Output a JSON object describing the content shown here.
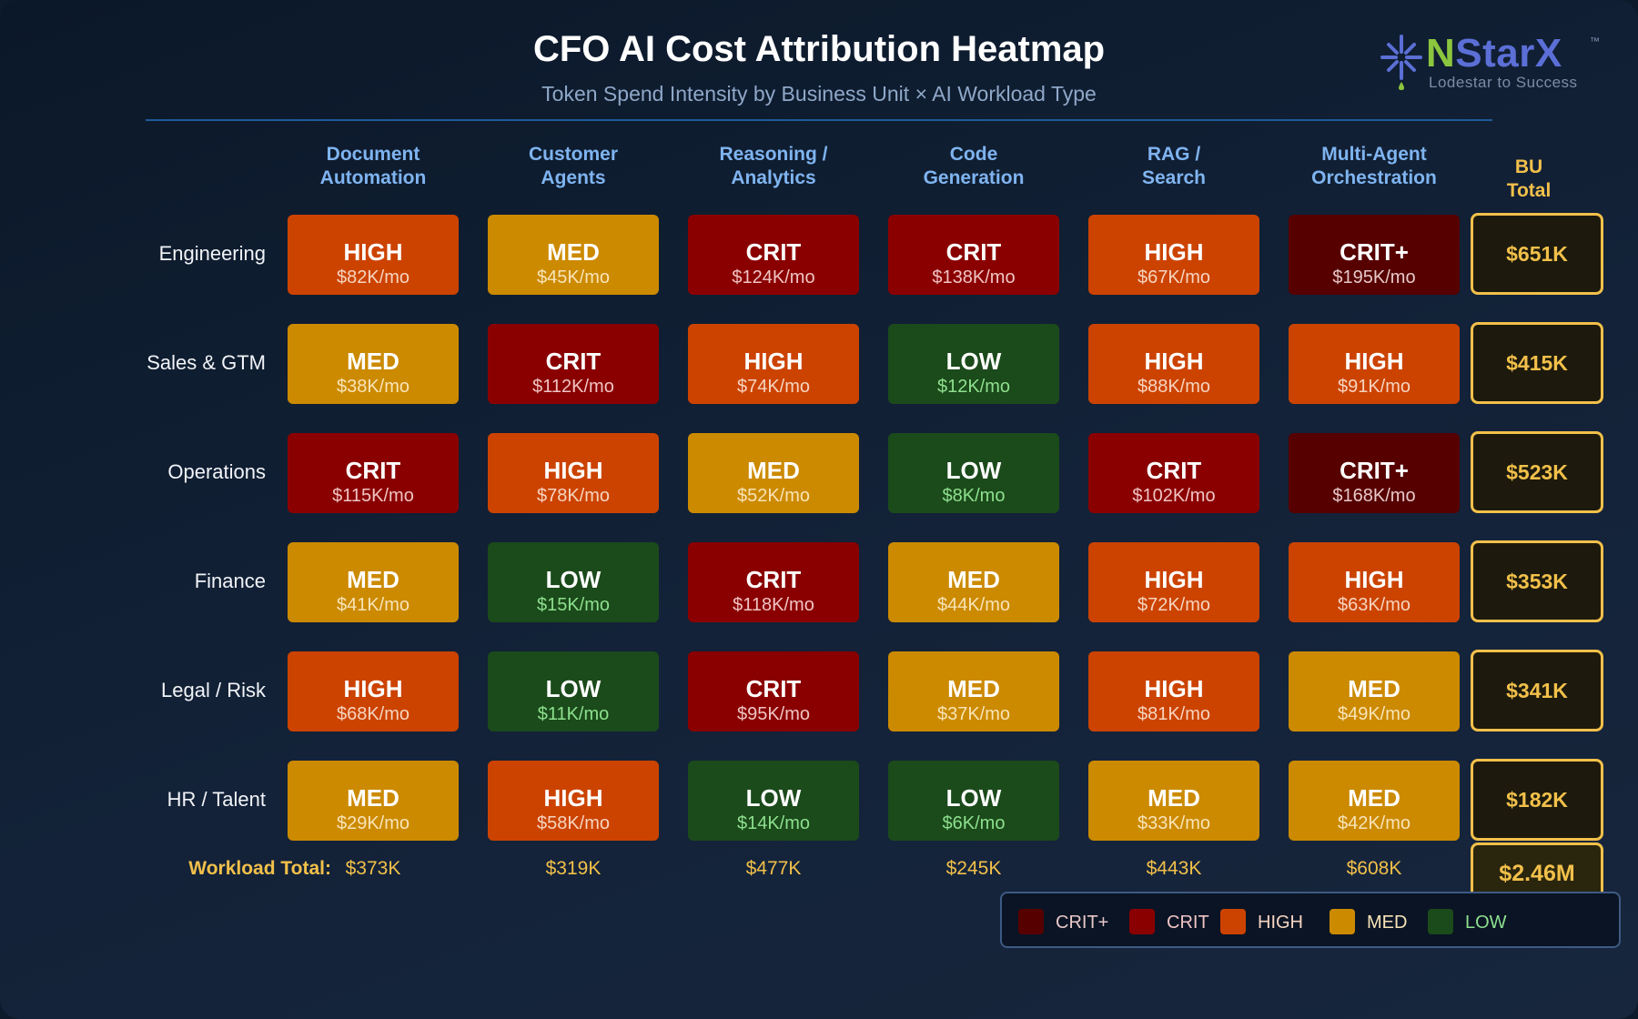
{
  "title": "CFO AI Cost Attribution Heatmap",
  "subtitle": "Token Spend Intensity by Business Unit × AI Workload Type",
  "logo": {
    "brand_n": "N",
    "brand_rest": "StarX",
    "tm": "™",
    "tagline": "Lodestar to Success",
    "icon": "asterisk-star-icon"
  },
  "colors": {
    "CRIT+": "#560000",
    "CRIT": "#8a0000",
    "HIGH": "#cc4300",
    "MED": "#cc8a00",
    "LOW": "#1b4a1b",
    "accent": "#f2c04a"
  },
  "value_text_colors": {
    "CRIT+": "#e8c8c8",
    "CRIT": "#f0c4c4",
    "HIGH": "#f6d4c0",
    "MED": "#f8e4b8",
    "LOW": "#8ee08e"
  },
  "chart_data": {
    "type": "heatmap",
    "title": "CFO AI Cost Attribution Heatmap",
    "subtitle": "Token Spend Intensity by Business Unit × AI Workload Type",
    "columns": [
      "Document\nAutomation",
      "Customer\nAgents",
      "Reasoning /\nAnalytics",
      "Code\nGeneration",
      "RAG /\nSearch",
      "Multi-Agent\nOrchestration"
    ],
    "bu_total_header": "BU\nTotal",
    "rows": [
      {
        "label": "Engineering",
        "bu_total": "$651K",
        "cells": [
          {
            "level": "HIGH",
            "value": "$82K/mo"
          },
          {
            "level": "MED",
            "value": "$45K/mo"
          },
          {
            "level": "CRIT",
            "value": "$124K/mo"
          },
          {
            "level": "CRIT",
            "value": "$138K/mo"
          },
          {
            "level": "HIGH",
            "value": "$67K/mo"
          },
          {
            "level": "CRIT+",
            "value": "$195K/mo"
          }
        ]
      },
      {
        "label": "Sales & GTM",
        "bu_total": "$415K",
        "cells": [
          {
            "level": "MED",
            "value": "$38K/mo"
          },
          {
            "level": "CRIT",
            "value": "$112K/mo"
          },
          {
            "level": "HIGH",
            "value": "$74K/mo"
          },
          {
            "level": "LOW",
            "value": "$12K/mo"
          },
          {
            "level": "HIGH",
            "value": "$88K/mo"
          },
          {
            "level": "HIGH",
            "value": "$91K/mo"
          }
        ]
      },
      {
        "label": "Operations",
        "bu_total": "$523K",
        "cells": [
          {
            "level": "CRIT",
            "value": "$115K/mo"
          },
          {
            "level": "HIGH",
            "value": "$78K/mo"
          },
          {
            "level": "MED",
            "value": "$52K/mo"
          },
          {
            "level": "LOW",
            "value": "$8K/mo"
          },
          {
            "level": "CRIT",
            "value": "$102K/mo"
          },
          {
            "level": "CRIT+",
            "value": "$168K/mo"
          }
        ]
      },
      {
        "label": "Finance",
        "bu_total": "$353K",
        "cells": [
          {
            "level": "MED",
            "value": "$41K/mo"
          },
          {
            "level": "LOW",
            "value": "$15K/mo"
          },
          {
            "level": "CRIT",
            "value": "$118K/mo"
          },
          {
            "level": "MED",
            "value": "$44K/mo"
          },
          {
            "level": "HIGH",
            "value": "$72K/mo"
          },
          {
            "level": "HIGH",
            "value": "$63K/mo"
          }
        ]
      },
      {
        "label": "Legal / Risk",
        "bu_total": "$341K",
        "cells": [
          {
            "level": "HIGH",
            "value": "$68K/mo"
          },
          {
            "level": "LOW",
            "value": "$11K/mo"
          },
          {
            "level": "CRIT",
            "value": "$95K/mo"
          },
          {
            "level": "MED",
            "value": "$37K/mo"
          },
          {
            "level": "HIGH",
            "value": "$81K/mo"
          },
          {
            "level": "MED",
            "value": "$49K/mo"
          }
        ]
      },
      {
        "label": "HR / Talent",
        "bu_total": "$182K",
        "cells": [
          {
            "level": "MED",
            "value": "$29K/mo"
          },
          {
            "level": "HIGH",
            "value": "$58K/mo"
          },
          {
            "level": "LOW",
            "value": "$14K/mo"
          },
          {
            "level": "LOW",
            "value": "$6K/mo"
          },
          {
            "level": "MED",
            "value": "$33K/mo"
          },
          {
            "level": "MED",
            "value": "$42K/mo"
          }
        ]
      }
    ],
    "workload_total_label": "Workload Total:",
    "workload_totals": [
      "$373K",
      "$319K",
      "$477K",
      "$245K",
      "$443K",
      "$608K"
    ],
    "grand_total": "$2.46M",
    "legend": [
      "CRIT+",
      "CRIT",
      "HIGH",
      "MED",
      "LOW"
    ],
    "legend_placement": "bottom-right"
  }
}
